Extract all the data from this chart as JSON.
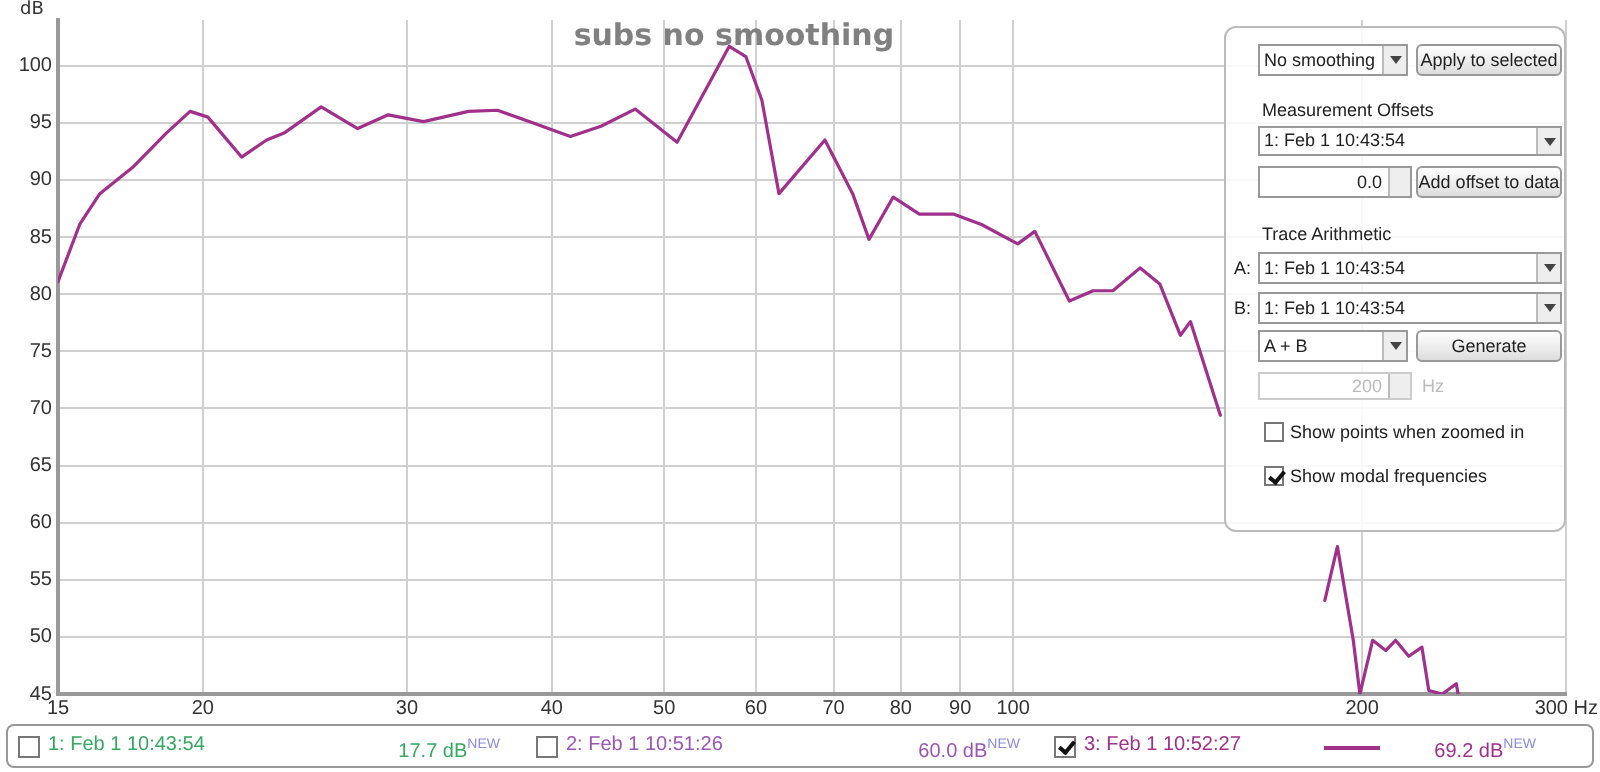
{
  "chart_data": {
    "type": "line",
    "title": "subs no smoothing",
    "ylabel": "dB",
    "log": "x",
    "grid": true,
    "legend": "bottom",
    "marker": "none",
    "line_style": "solid",
    "xlim": [
      15,
      300
    ],
    "ylim": [
      45,
      104
    ],
    "xticks": [
      15,
      20,
      30,
      40,
      50,
      60,
      70,
      80,
      90,
      100,
      200,
      {
        "value": 300,
        "label": "300 Hz"
      }
    ],
    "yticks": [
      45,
      50,
      55,
      60,
      65,
      70,
      75,
      80,
      85,
      90,
      95,
      100
    ],
    "series": [
      {
        "name": "3: Feb 1 10:52:27",
        "color": "#a0308c",
        "x": [
          15,
          15.66,
          16.3,
          17.4,
          18.6,
          19.5,
          20.2,
          21.6,
          22.7,
          23.5,
          25.3,
          27.2,
          28.9,
          31,
          33.9,
          35.9,
          38.5,
          41.5,
          44.1,
          47.2,
          51.3,
          56.9,
          58.8,
          60.7,
          62.8,
          68.8,
          72.7,
          75.1,
          78.8,
          83,
          88.9,
          93.9,
          100.9,
          104.4,
          111.8,
          117.2,
          121.9,
          128.7,
          133.8,
          139.4,
          142.2,
          150.9,
          156.2,
          159.5,
          171.7,
          176.8,
          182.3,
          185.7,
          190.4,
          196.5,
          199.1,
          204.2,
          209.6,
          213.7,
          219.4,
          225.2,
          228.3,
          234.5,
          241.1,
          242
        ],
        "values": [
          81.1,
          86.1,
          88.8,
          91.1,
          94.1,
          96,
          95.5,
          92,
          93.5,
          94.1,
          96.4,
          94.5,
          95.7,
          95.1,
          96,
          96.1,
          95,
          93.8,
          94.7,
          96.2,
          93.3,
          101.7,
          100.8,
          97,
          88.8,
          93.5,
          88.8,
          84.8,
          88.5,
          87,
          87,
          86.1,
          84.4,
          85.5,
          79.4,
          80.3,
          80.3,
          82.3,
          80.9,
          76.4,
          77.6,
          69.4,
          null,
          null,
          null,
          null,
          null,
          53.2,
          57.9,
          49.7,
          45,
          49.7,
          48.8,
          49.7,
          48.3,
          49.1,
          45.3,
          45,
          45.9,
          45
        ]
      }
    ],
    "annotations": [
      "No  smoothing",
      "Apply to selected",
      "Measurement Offsets",
      "1: Feb 1 10:43:54",
      "0.0",
      "Add offset to data",
      "Trace Arithmetic",
      "A:",
      "1: Feb 1 10:43:54",
      "B:",
      "1: Feb 1 10:43:54",
      "A + B",
      "Generate",
      "200",
      "Hz",
      "Show points when zoomed in",
      "Show modal frequencies",
      "1: Feb 1 10:43:54",
      "17.7 dB$^{NEW}$",
      "2: Feb 1 10:51:26",
      "60.0 dB$^{NEW}$",
      "69.2 dB$^{NEW}$"
    ]
  }
}
